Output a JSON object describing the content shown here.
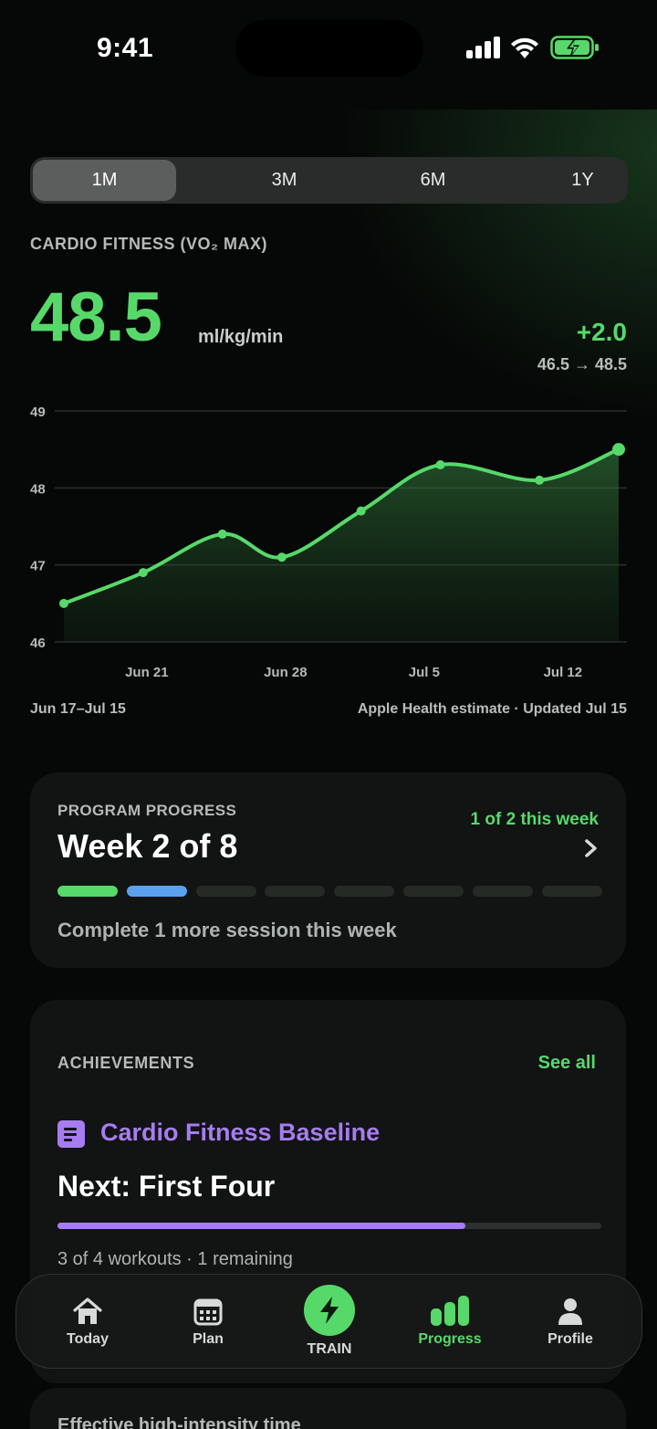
{
  "status_bar": {
    "time": "9:41"
  },
  "range_tabs": [
    {
      "label": "1M",
      "active": true
    },
    {
      "label": "3M",
      "active": false
    },
    {
      "label": "6M",
      "active": false
    },
    {
      "label": "1Y",
      "active": false
    }
  ],
  "metric": {
    "label": "CARDIO FITNESS (VO₂ MAX)",
    "value": "48.5",
    "unit": "ml/kg/min",
    "delta": "+2.0",
    "range": "46.5 → 48.5"
  },
  "chart_data": {
    "type": "line",
    "x": [
      "Jun 17",
      "Jun 21",
      "Jun 25",
      "Jun 28",
      "Jul 2",
      "Jul 6",
      "Jul 11",
      "Jul 15"
    ],
    "series": [
      {
        "values": [
          46.5,
          46.9,
          47.4,
          47.1,
          47.7,
          48.3,
          48.1,
          48.5
        ]
      }
    ],
    "ylim": [
      46,
      49
    ],
    "y_ticks": [
      "49",
      "48",
      "47",
      "46"
    ],
    "x_ticks": [
      "Jun 21",
      "Jun 28",
      "Jul 5",
      "Jul 12"
    ],
    "grid": true,
    "color": "#57d96a"
  },
  "chart_footer": {
    "range": "Jun 17–Jul 15",
    "source": "Apple Health estimate · Updated Jul 15"
  },
  "program": {
    "label": "PROGRAM PROGRESS",
    "title": "Week 2 of 8",
    "week_status": "1 of 2 this week",
    "weeks": [
      "complete",
      "current",
      "upcoming",
      "upcoming",
      "upcoming",
      "upcoming",
      "upcoming",
      "upcoming"
    ],
    "subtitle": "Complete 1 more session this week"
  },
  "achievements": {
    "label": "ACHIEVEMENTS",
    "see_all": "See all",
    "current_name": "Cardio Fitness Baseline",
    "next": "Next: First Four",
    "progress": 0.75,
    "progress_text": "3 of 4 workouts · 1 remaining"
  },
  "next_card": {
    "title": "Effective high-intensity time"
  },
  "tabbar": {
    "items": [
      {
        "label": "Today",
        "icon": "home-icon"
      },
      {
        "label": "Plan",
        "icon": "calendar-icon"
      },
      {
        "label": "TRAIN",
        "icon": "bolt-icon"
      },
      {
        "label": "Progress",
        "icon": "bar-chart-icon",
        "active": true
      },
      {
        "label": "Profile",
        "icon": "person-icon"
      }
    ]
  },
  "colors": {
    "accent": "#57d96a",
    "current_week": "#5aa2f0",
    "achievement": "#a77cf0",
    "background": "#060807"
  }
}
